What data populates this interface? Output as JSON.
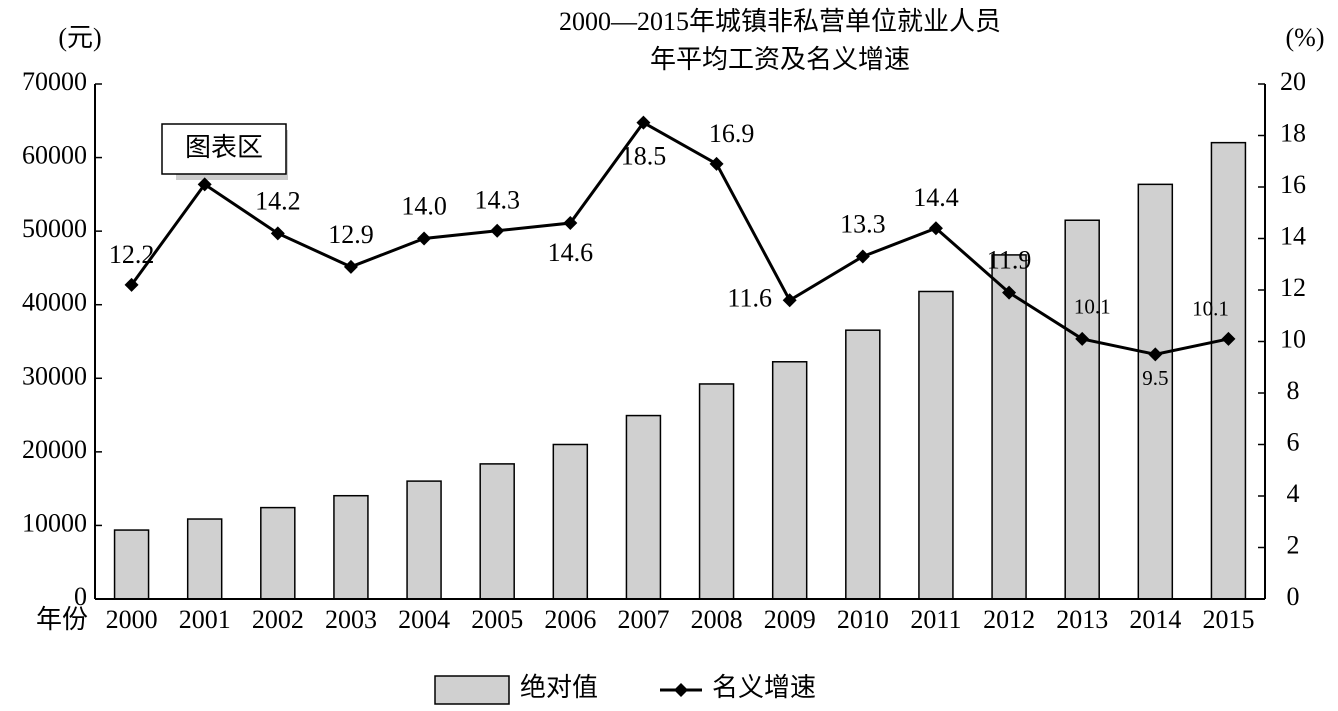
{
  "chart_data": {
    "type": "bar_line",
    "title_lines": [
      "2000—2015年城镇非私营单位就业人员",
      "年平均工资及名义增速"
    ],
    "y_label": "(元)",
    "y2_label": "(%)",
    "x_label": "年份",
    "annotation": "图表区",
    "categories": [
      "2000",
      "2001",
      "2002",
      "2003",
      "2004",
      "2005",
      "2006",
      "2007",
      "2008",
      "2009",
      "2010",
      "2011",
      "2012",
      "2013",
      "2014",
      "2015"
    ],
    "series": [
      {
        "name": "绝对值",
        "type": "bar",
        "color": "#d0d0d0",
        "values": [
          9371,
          10870,
          12422,
          14040,
          16024,
          18364,
          21001,
          24932,
          29229,
          32244,
          36539,
          41799,
          46769,
          51483,
          56360,
          62029
        ]
      },
      {
        "name": "名义增速",
        "type": "line",
        "axis": "y2",
        "color": "#000000",
        "values": [
          12.2,
          16.1,
          14.2,
          12.9,
          14.0,
          14.3,
          14.6,
          18.5,
          16.9,
          11.6,
          13.3,
          14.4,
          11.9,
          10.1,
          9.5,
          10.1
        ],
        "value_labels": [
          "12.2",
          null,
          "14.2",
          "12.9",
          "14.0",
          "14.3",
          "14.6",
          "18.5",
          "16.9",
          "11.6",
          "13.3",
          "14.4",
          "11.9",
          "10.1",
          "9.5",
          "10.1"
        ]
      }
    ],
    "ylim": [
      0,
      70000
    ],
    "yticks": [
      0,
      10000,
      20000,
      30000,
      40000,
      50000,
      60000,
      70000
    ],
    "y2lim": [
      0,
      20
    ],
    "y2ticks": [
      0,
      2,
      4,
      6,
      8,
      10,
      12,
      14,
      16,
      18,
      20
    ]
  }
}
